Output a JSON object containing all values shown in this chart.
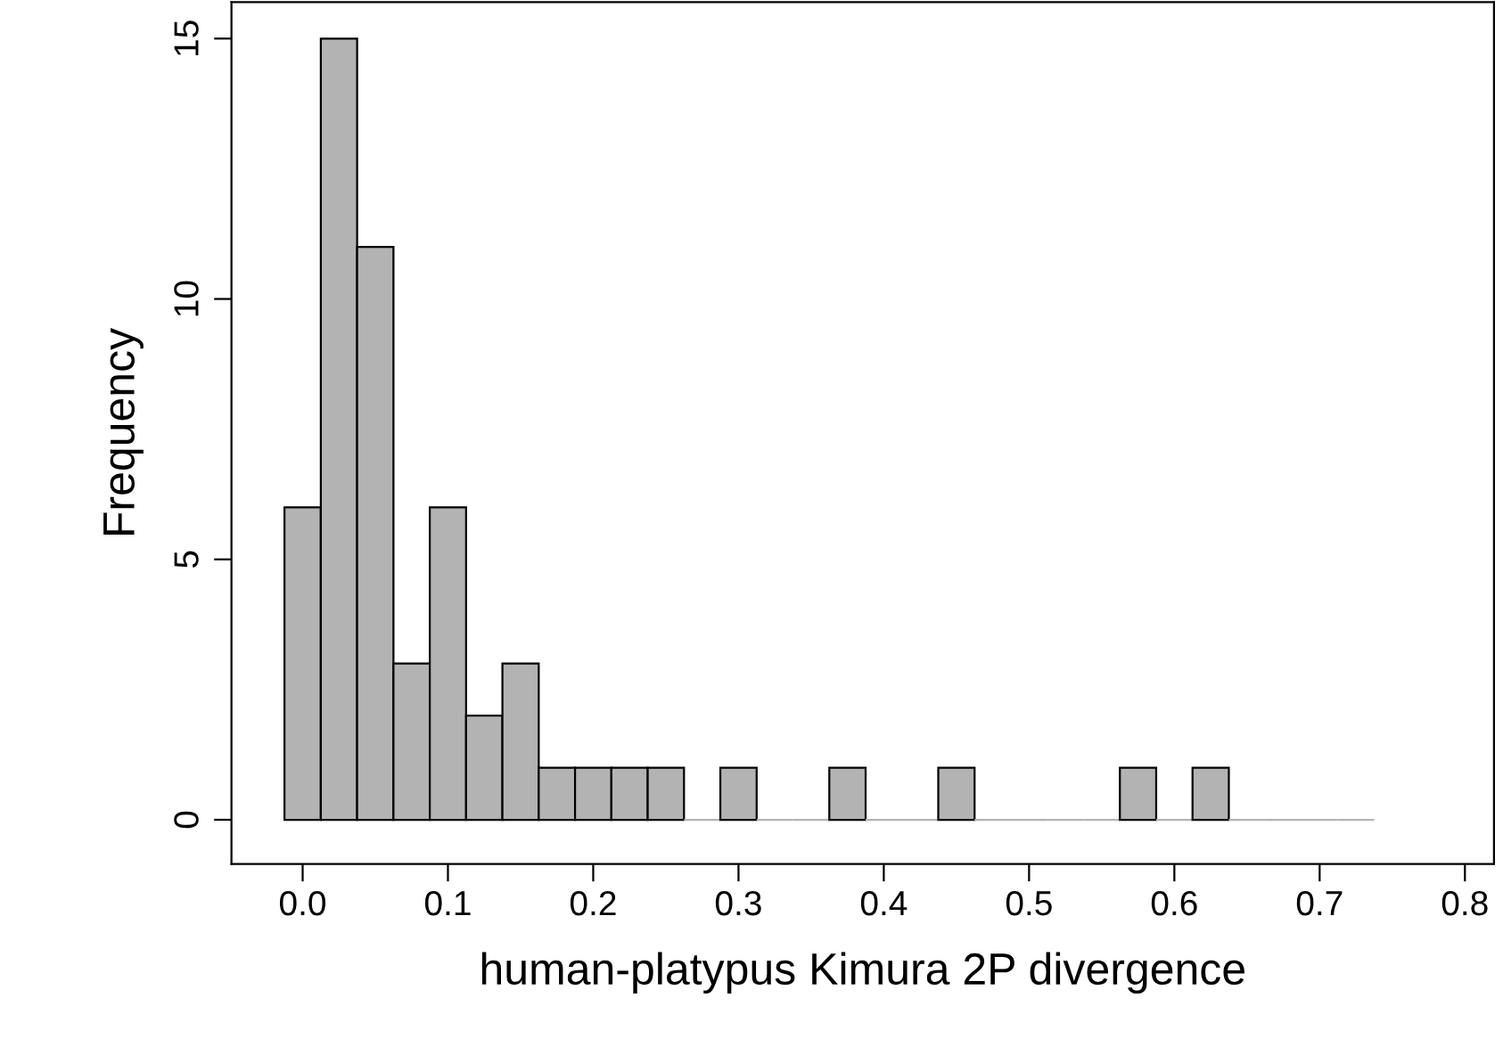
{
  "chart_data": {
    "type": "histogram",
    "xlabel": "human-platypus Kimura 2P divergence",
    "ylabel": "Frequency",
    "bins": [
      -0.0125,
      0.0125,
      0.0375,
      0.0625,
      0.0875,
      0.1125,
      0.1375,
      0.1625,
      0.1875,
      0.2125,
      0.2375,
      0.2625,
      0.2875,
      0.3125,
      0.3375,
      0.3625,
      0.3875,
      0.4125,
      0.4375,
      0.4625,
      0.4875,
      0.5125,
      0.5375,
      0.5625,
      0.5875,
      0.6125,
      0.6375,
      0.6625,
      0.6875,
      0.7125,
      0.7375
    ],
    "values": [
      6,
      15,
      11,
      3,
      6,
      2,
      3,
      1,
      1,
      1,
      1,
      0,
      1,
      0,
      0,
      1,
      0,
      0,
      1,
      0,
      0,
      0,
      0,
      1,
      0,
      1,
      0,
      0,
      0,
      0
    ],
    "color": "#b3b3b3",
    "xlim": [
      -0.049,
      0.82
    ],
    "xticks": [
      {
        "value": 0,
        "label": "0.0"
      },
      0.1,
      0.2,
      0.3,
      0.4,
      0.5,
      0.6,
      0.7,
      0.8
    ],
    "ylim": [
      -0.85,
      15.7
    ],
    "yticks": [
      0,
      5,
      10,
      15
    ],
    "grid": false
  }
}
